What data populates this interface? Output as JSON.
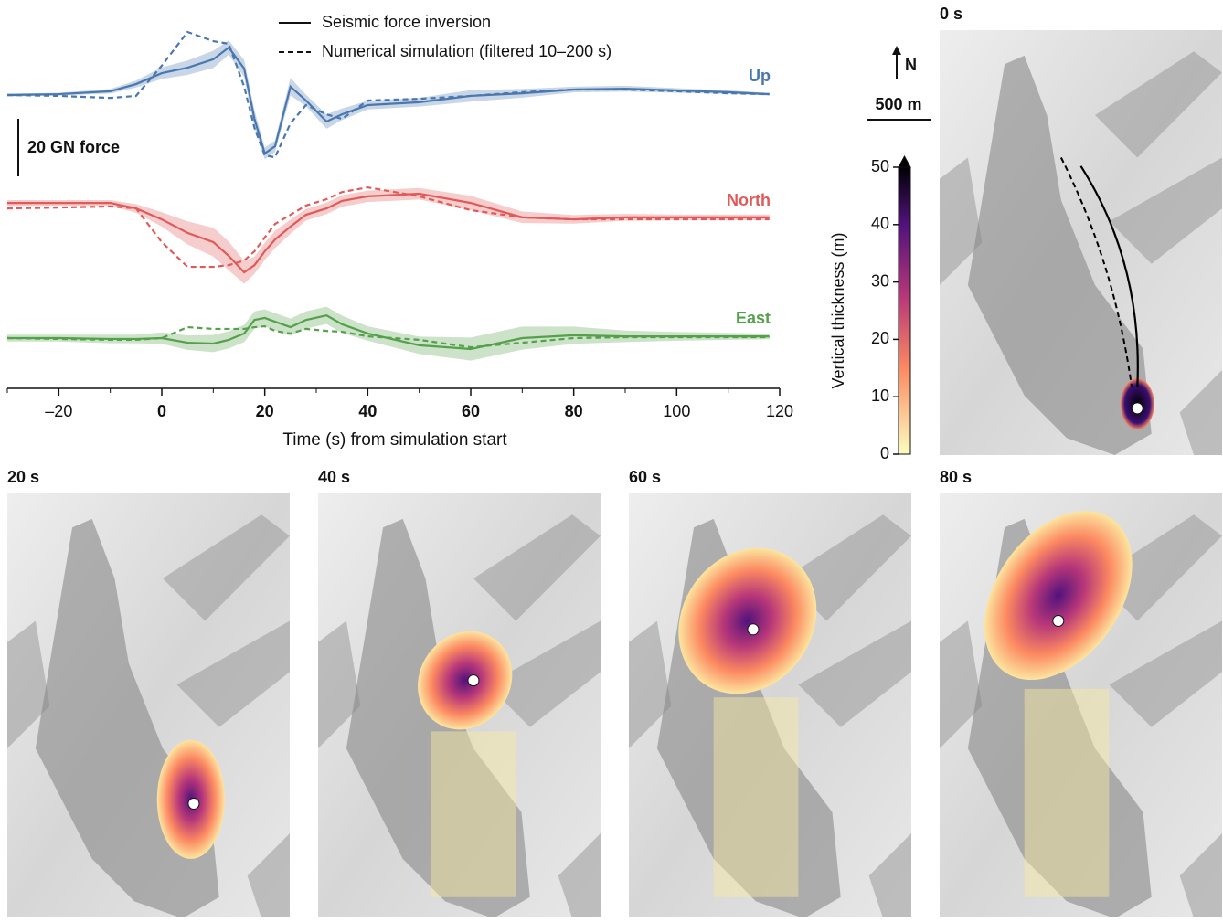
{
  "chart_data": {
    "type": "line",
    "xlabel": "Time (s) from simulation start",
    "xlim": [
      -30,
      120
    ],
    "xticks": [
      {
        "value": -20,
        "label": "–20"
      },
      0,
      20,
      40,
      60,
      80,
      100,
      120
    ],
    "bold_xticks": [
      0,
      20,
      40,
      60,
      80
    ],
    "legend": [
      "Seismic force inversion",
      "Numerical simulation (filtered 10–200 s)"
    ],
    "scale_bar": {
      "label": "20 GN force",
      "value": 20
    },
    "x": [
      -30,
      -20,
      -10,
      -5,
      0,
      5,
      10,
      13,
      16,
      18,
      20,
      22,
      25,
      28,
      32,
      35,
      40,
      50,
      60,
      70,
      80,
      90,
      100,
      110,
      118
    ],
    "components": [
      {
        "name": "Up",
        "color": "#4a78ae",
        "inversion": [
          0,
          0.3,
          1.3,
          3.8,
          7.6,
          9.5,
          12.4,
          16.5,
          9.2,
          -8.3,
          -20.3,
          -17.8,
          2.9,
          -1.9,
          -9.2,
          -6.7,
          -3.5,
          -2.5,
          -0.3,
          0.6,
          1.9,
          2.2,
          1.6,
          1.0,
          0.3
        ],
        "simulation": [
          0,
          -0.3,
          -1,
          -0.3,
          10.2,
          21.9,
          18.7,
          17.8,
          2.9,
          -11.4,
          -21,
          -21.6,
          -9.8,
          -3.5,
          -6.7,
          -8.3,
          -1.9,
          -1.3,
          -0.3,
          1,
          1.9,
          1.9,
          1.3,
          0.6,
          0.3
        ],
        "band": [
          0.5,
          0.5,
          0.8,
          1.2,
          2,
          2.5,
          3,
          2.5,
          3,
          3,
          2,
          2,
          3,
          2,
          2.5,
          2,
          1.5,
          1.5,
          2,
          1.5,
          1,
          1,
          0.8,
          0.6,
          0.5
        ]
      },
      {
        "name": "North",
        "color": "#e05a5a",
        "inversion": [
          0.6,
          0.6,
          0.6,
          -1.3,
          -5.1,
          -9.8,
          -13,
          -17.8,
          -23.5,
          -21,
          -16.2,
          -12.1,
          -7.6,
          -3.5,
          -1.3,
          1.3,
          2.9,
          3.8,
          0.6,
          -4.4,
          -5.1,
          -4.4,
          -4.4,
          -4.4,
          -4.4
        ],
        "simulation": [
          -1.3,
          -1,
          -0.6,
          -1.3,
          -13,
          -21.6,
          -21.6,
          -21,
          -19.4,
          -16.2,
          -11.4,
          -6.7,
          -3.5,
          -0.3,
          1.9,
          4.4,
          6,
          2.9,
          -1.9,
          -4.4,
          -5.1,
          -5.1,
          -5.1,
          -5.1,
          -5.1
        ],
        "band": [
          1,
          1,
          1,
          1.5,
          2.5,
          4,
          5,
          5,
          4,
          3,
          3,
          3,
          2.5,
          2,
          2,
          2,
          2,
          2,
          2.5,
          2,
          1.5,
          1.2,
          1,
          1,
          1
        ]
      },
      {
        "name": "East",
        "color": "#55a04b",
        "inversion": [
          0,
          0,
          -0.3,
          -0.3,
          0,
          -1.6,
          -1.9,
          -0.6,
          1.6,
          6.3,
          7,
          5.7,
          3.8,
          6.3,
          7.9,
          4.8,
          1.6,
          -2.5,
          -3.8,
          0,
          1,
          0.6,
          0.6,
          0.6,
          0.6
        ],
        "simulation": [
          0,
          -0.3,
          -0.6,
          -0.6,
          0,
          3.8,
          3.2,
          3.2,
          3.2,
          3.8,
          4.1,
          2.5,
          1.6,
          3.2,
          2.5,
          2.2,
          0.6,
          -0.6,
          -3.2,
          -1.6,
          0,
          0.3,
          0.3,
          0.3,
          0.3
        ],
        "band": [
          1.2,
          1.2,
          1.5,
          1.5,
          2,
          2.5,
          3,
          3,
          3,
          3,
          3,
          3,
          3,
          3,
          3,
          3,
          2.5,
          3,
          4,
          4,
          3,
          2,
          1.5,
          1.2,
          1
        ]
      }
    ]
  },
  "colorbar": {
    "label": "Vertical thickness (m)",
    "ylim": [
      0,
      50
    ],
    "yticks": [
      0,
      10,
      20,
      30,
      40,
      50
    ]
  },
  "north_label": "N",
  "map_scale": "500 m",
  "maps": [
    {
      "label": "0 s"
    },
    {
      "label": "20 s"
    },
    {
      "label": "40 s"
    },
    {
      "label": "60 s"
    },
    {
      "label": "80 s"
    }
  ]
}
